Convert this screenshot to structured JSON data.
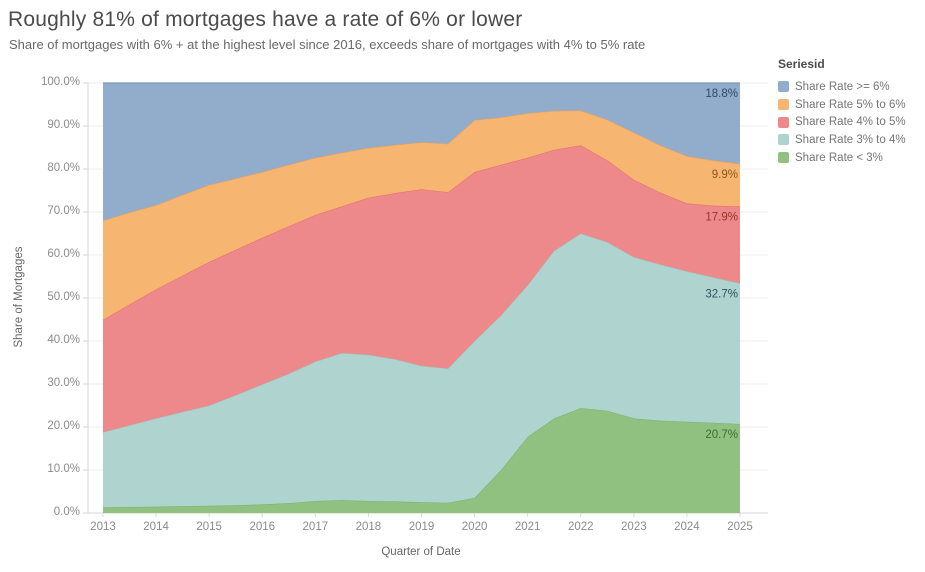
{
  "legend": {
    "title": "Seriesid"
  },
  "chart_data": {
    "type": "area",
    "stacked": "100%",
    "title": "Roughly 81% of mortgages have a rate of 6% or lower",
    "subtitle": "Share of mortgages with 6% + at the highest level since 2016, exceeds share of mortgages with 4% to 5% rate",
    "xlabel": "Quarter of Date",
    "ylabel": "Share of Mortgages",
    "legend_position": "right",
    "grid": "horizontal",
    "xlim": [
      2013,
      2025
    ],
    "ylim": [
      0,
      100
    ],
    "x_tick_labels": [
      "2013",
      "2014",
      "2015",
      "2016",
      "2017",
      "2018",
      "2019",
      "2020",
      "2021",
      "2022",
      "2023",
      "2024",
      "2025"
    ],
    "y_tick_labels": [
      "0.0%",
      "10.0%",
      "20.0%",
      "30.0%",
      "40.0%",
      "50.0%",
      "60.0%",
      "70.0%",
      "80.0%",
      "90.0%",
      "100.0%"
    ],
    "x": [
      2013,
      2013.5,
      2014,
      2014.5,
      2015,
      2015.5,
      2016,
      2016.5,
      2017,
      2017.5,
      2018,
      2018.5,
      2019,
      2019.5,
      2020,
      2020.5,
      2021,
      2021.5,
      2022,
      2022.5,
      2023,
      2023.5,
      2024,
      2024.5,
      2025
    ],
    "series": [
      {
        "name": "Share Rate < 3%",
        "color": "#90c181",
        "line_color": "#7fb46e",
        "end_label": "20.7%",
        "end_label_color": "#3f6d33",
        "values": [
          1.3,
          1.4,
          1.5,
          1.6,
          1.7,
          1.8,
          2.0,
          2.3,
          2.8,
          3.0,
          2.8,
          2.7,
          2.5,
          2.4,
          3.5,
          10.0,
          17.7,
          22.0,
          24.4,
          23.8,
          22.0,
          21.5,
          21.2,
          21.0,
          20.7
        ]
      },
      {
        "name": "Share Rate 3% to 4%",
        "color": "#afd4d0",
        "line_color": "#99c6c1",
        "end_label": "32.7%",
        "end_label_color": "#2e5060",
        "values": [
          17.5,
          19.0,
          20.5,
          21.9,
          23.3,
          25.6,
          27.9,
          30.1,
          32.4,
          34.2,
          34.0,
          33.1,
          31.7,
          31.2,
          36.5,
          36.0,
          35.3,
          39.0,
          40.6,
          39.2,
          37.5,
          36.3,
          35.0,
          33.8,
          32.7
        ]
      },
      {
        "name": "Share Rate 4% to 5%",
        "color": "#ee898b",
        "line_color": "#e67173",
        "end_label": "17.9%",
        "end_label_color": "#96342f",
        "values": [
          26.1,
          28.1,
          30.0,
          31.7,
          33.4,
          33.8,
          34.1,
          34.3,
          34.1,
          34.1,
          36.5,
          38.6,
          41.1,
          41.0,
          39.3,
          35.0,
          29.6,
          23.5,
          20.5,
          19.0,
          18.0,
          16.7,
          15.8,
          16.7,
          17.9
        ]
      },
      {
        "name": "Share Rate 5% to 6%",
        "color": "#f6b571",
        "line_color": "#eea057",
        "end_label": "9.9%",
        "end_label_color": "#8a5a1a",
        "values": [
          23.1,
          21.4,
          19.6,
          18.8,
          17.9,
          16.6,
          15.3,
          14.3,
          13.3,
          12.5,
          11.6,
          11.2,
          10.9,
          11.3,
          12.1,
          11.0,
          10.4,
          9.0,
          8.1,
          9.5,
          11.0,
          11.0,
          11.0,
          10.5,
          9.9
        ]
      },
      {
        "name": "Share Rate >= 6%",
        "color": "#92adcc",
        "line_color": "#7d99bb",
        "end_label": "18.8%",
        "end_label_color": "#2d4a6b",
        "values": [
          32.0,
          30.1,
          28.4,
          26.0,
          23.7,
          22.2,
          20.7,
          19.0,
          17.4,
          16.2,
          15.1,
          14.4,
          13.8,
          14.1,
          8.6,
          8.0,
          7.0,
          6.5,
          6.4,
          8.5,
          11.5,
          14.5,
          17.0,
          18.0,
          18.8
        ]
      }
    ]
  }
}
